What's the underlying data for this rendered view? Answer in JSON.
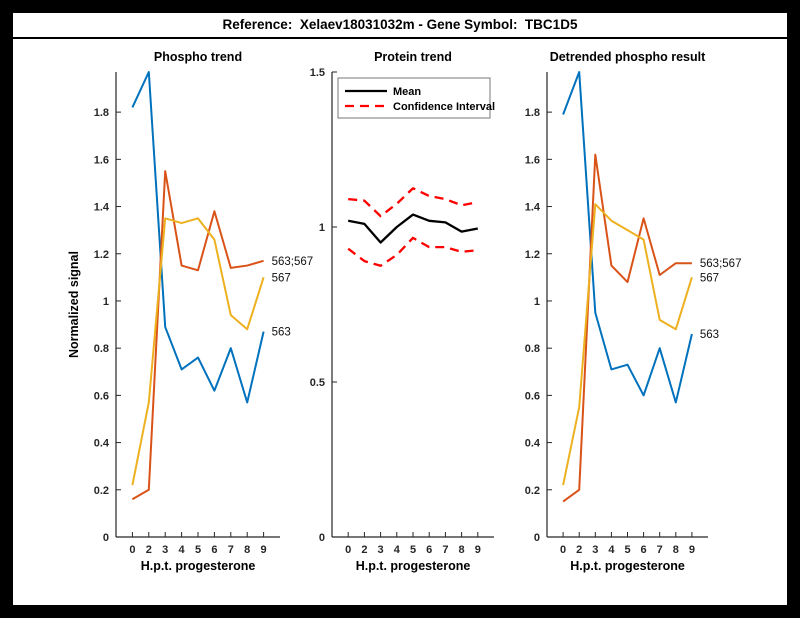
{
  "header": {
    "title": "Reference:  Xelaev18031032m - Gene Symbol:  TBC1D5"
  },
  "colors": {
    "blue": "#0072BD",
    "orange": "#D95319",
    "yellow": "#EDB120",
    "red": "#FF0000",
    "black": "#000000",
    "axis": "#262626",
    "figure_bg": "#FFFFFF",
    "border_bg": "#000000"
  },
  "chart_data": [
    {
      "type": "line",
      "name": "phospho-trend",
      "title": "Phospho trend",
      "xlabel": "H.p.t. progesterone",
      "ylabel": "Normalized signal",
      "categories": [
        "0",
        "2",
        "3",
        "4",
        "5",
        "6",
        "7",
        "8",
        "9"
      ],
      "ylim": [
        0,
        1.97
      ],
      "yticks": [
        "0",
        "0.2",
        "0.4",
        "0.6",
        "0.8",
        "1",
        "1.2",
        "1.4",
        "1.6",
        "1.8"
      ],
      "grid": false,
      "series": [
        {
          "name": "563",
          "color_key": "blue",
          "dash": false,
          "end_label": "563",
          "values": [
            1.82,
            1.97,
            0.89,
            0.71,
            0.76,
            0.62,
            0.8,
            0.57,
            0.87
          ]
        },
        {
          "name": "563;567",
          "color_key": "orange",
          "dash": false,
          "end_label": "563;567",
          "values": [
            0.16,
            0.2,
            1.55,
            1.15,
            1.13,
            1.38,
            1.14,
            1.15,
            1.17
          ]
        },
        {
          "name": "567",
          "color_key": "yellow",
          "dash": false,
          "end_label": "567",
          "values": [
            0.22,
            0.57,
            1.35,
            1.33,
            1.35,
            1.26,
            0.94,
            0.88,
            1.1
          ]
        }
      ]
    },
    {
      "type": "line",
      "name": "protein-trend",
      "title": "Protein trend",
      "xlabel": "H.p.t. progesterone",
      "ylabel": "",
      "categories": [
        "0",
        "2",
        "3",
        "4",
        "5",
        "6",
        "7",
        "8",
        "9"
      ],
      "ylim": [
        0,
        1.5
      ],
      "yticks": [
        "0",
        "0.5",
        "1",
        "1.5"
      ],
      "grid": false,
      "legend": {
        "position": "top-left",
        "entries": [
          {
            "label": "Mean",
            "color_key": "black",
            "dash": false
          },
          {
            "label": "Confidence Interval",
            "color_key": "red",
            "dash": true
          }
        ]
      },
      "series": [
        {
          "name": "mean",
          "color_key": "black",
          "dash": false,
          "values": [
            1.02,
            1.01,
            0.95,
            1.0,
            1.04,
            1.02,
            1.015,
            0.985,
            0.995
          ]
        },
        {
          "name": "ci-upper",
          "color_key": "red",
          "dash": true,
          "values": [
            1.09,
            1.085,
            1.035,
            1.075,
            1.125,
            1.1,
            1.09,
            1.07,
            1.08
          ]
        },
        {
          "name": "ci-lower",
          "color_key": "red",
          "dash": true,
          "values": [
            0.93,
            0.89,
            0.875,
            0.91,
            0.965,
            0.935,
            0.935,
            0.92,
            0.925
          ]
        }
      ]
    },
    {
      "type": "line",
      "name": "detrended-phospho",
      "title": "Detrended phospho result",
      "xlabel": "H.p.t. progesterone",
      "ylabel": "",
      "categories": [
        "0",
        "2",
        "3",
        "4",
        "5",
        "6",
        "7",
        "8",
        "9"
      ],
      "ylim": [
        0,
        1.97
      ],
      "yticks": [
        "0",
        "0.2",
        "0.4",
        "0.6",
        "0.8",
        "1",
        "1.2",
        "1.4",
        "1.6",
        "1.8"
      ],
      "grid": false,
      "series": [
        {
          "name": "563",
          "color_key": "blue",
          "dash": false,
          "end_label": "563",
          "values": [
            1.79,
            1.97,
            0.95,
            0.71,
            0.73,
            0.6,
            0.8,
            0.57,
            0.86
          ]
        },
        {
          "name": "563;567",
          "color_key": "orange",
          "dash": false,
          "end_label": "563;567",
          "values": [
            0.15,
            0.2,
            1.62,
            1.15,
            1.08,
            1.35,
            1.11,
            1.16,
            1.16
          ]
        },
        {
          "name": "567",
          "color_key": "yellow",
          "dash": false,
          "end_label": "567",
          "values": [
            0.22,
            0.55,
            1.41,
            1.34,
            1.3,
            1.26,
            0.92,
            0.88,
            1.1
          ]
        }
      ]
    }
  ]
}
